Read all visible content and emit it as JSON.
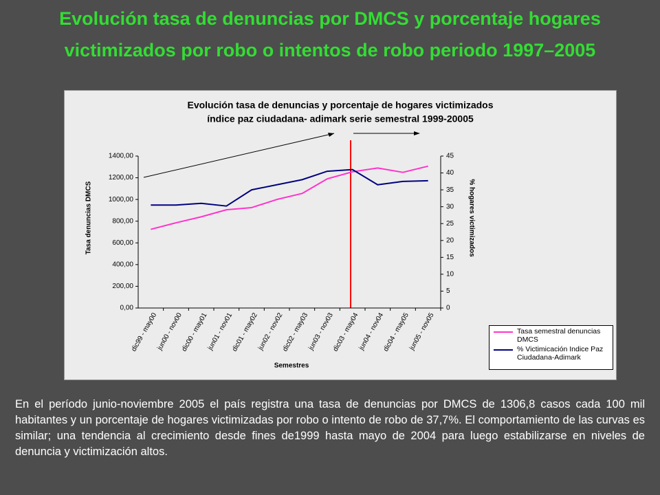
{
  "slide": {
    "title_lines": [
      "Evolución tasa de denuncias por DMCS y porcentaje hogares",
      "victimizados por robo o intentos de robo periodo 1997–2005"
    ],
    "text": "En el período junio-noviembre 2005 el país registra una tasa de denuncias por DMCS de 1306,8 casos cada 100 mil habitantes y un porcentaje de hogares victimizadas por robo o intento de robo de 37,7%. El comportamiento de las curvas es similar; una tendencia al crecimiento desde fines de1999 hasta mayo de 2004 para luego estabilizarse en niveles de denuncia y victimización altos."
  },
  "chart_data": {
    "type": "line",
    "title": "Evolución tasa de denuncias y porcentaje de hogares victimizados",
    "subtitle": "índice paz ciudadana- adimark serie semestral 1999-20005",
    "x_label": "Semestres",
    "y_label": "Tasa denuncias DMCS",
    "y2_label": "% hogares victimizados",
    "categories": [
      "dic99 - may00",
      "jun00 - nov00",
      "dic00 - may01",
      "jun01 - nov01",
      "dic01 - may02",
      "jun02 - nov02",
      "dic02 - may03",
      "jun03 - nov03",
      "dic03 - may04",
      "jun04 - nov04",
      "dic04 - may05",
      "jun05 - nov05"
    ],
    "series": [
      {
        "name": "Tasa semestral denuncias DMCS",
        "color": "#ff33cc",
        "values": [
          725,
          785,
          840,
          905,
          925,
          1000,
          1055,
          1190,
          1255,
          1290,
          1250,
          1306.8
        ]
      },
      {
        "name": "% Victimicación Indice Paz Ciudadana-Adimark",
        "color": "#000080",
        "axis": "y2",
        "values": [
          30.5,
          30.5,
          31,
          30.2,
          35,
          36.5,
          38,
          40.5,
          41,
          36.5,
          37.5,
          37.7
        ]
      }
    ],
    "ylim": [
      0,
      1400
    ],
    "yticks": [
      {
        "value": 0,
        "label": "0,00"
      },
      {
        "value": 200,
        "label": "200,00"
      },
      {
        "value": 400,
        "label": "400,00"
      },
      {
        "value": 600,
        "label": "600,00"
      },
      {
        "value": 800,
        "label": "800,00"
      },
      {
        "value": 1000,
        "label": "1000,00"
      },
      {
        "value": 1200,
        "label": "1200,00"
      },
      {
        "value": 1400,
        "label": "1400,00"
      }
    ],
    "y2lim": [
      0,
      45
    ],
    "y2ticks": [
      0,
      5,
      10,
      15,
      20,
      25,
      30,
      35,
      40,
      45
    ],
    "legend": "bottom-right"
  }
}
